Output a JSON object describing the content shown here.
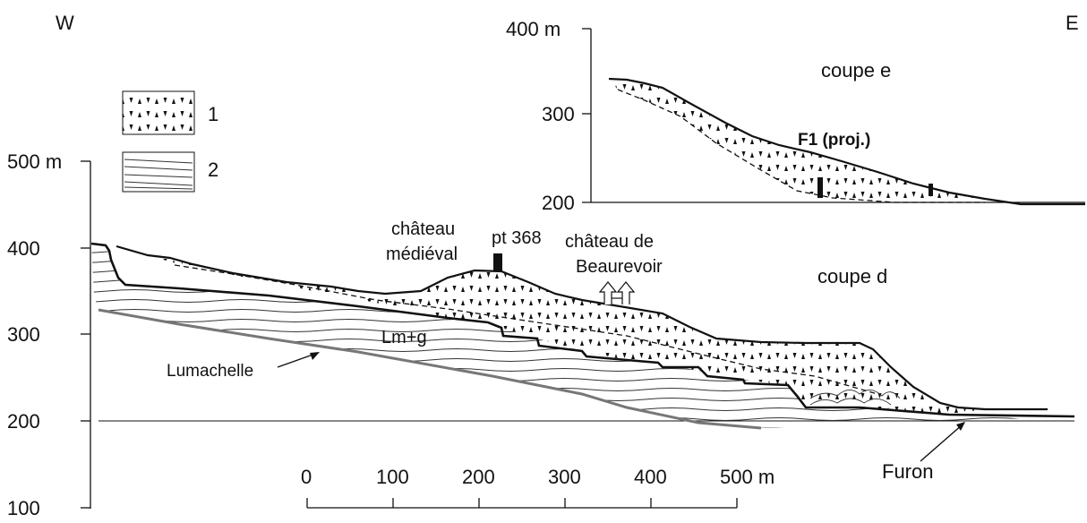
{
  "orientation": {
    "west": "W",
    "east": "E"
  },
  "legend": [
    {
      "key": "1",
      "pattern": "triangles"
    },
    {
      "key": "2",
      "pattern": "lines"
    }
  ],
  "axis_main": {
    "ticks": [
      "500 m",
      "400",
      "300",
      "200",
      "100"
    ]
  },
  "axis_inset": {
    "ticks": [
      "400 m",
      "300",
      "200"
    ]
  },
  "inset_title": "coupe e",
  "main_title": "coupe d",
  "labels": {
    "f1": "F1 (proj.)",
    "chateau_medieval_1": "château",
    "chateau_medieval_2": "médiéval",
    "pt368": "pt 368",
    "chateau_beaurevoir_1": "château de",
    "chateau_beaurevoir_2": "Beaurevoir",
    "lmg": "Lm+g",
    "lumachelle": "Lumachelle",
    "furon": "Furon"
  },
  "scale_bar": {
    "ticks": [
      "0",
      "100",
      "200",
      "300",
      "400",
      "500 m"
    ]
  },
  "colors": {
    "line": "#111111",
    "lumachelle": "#777777"
  }
}
